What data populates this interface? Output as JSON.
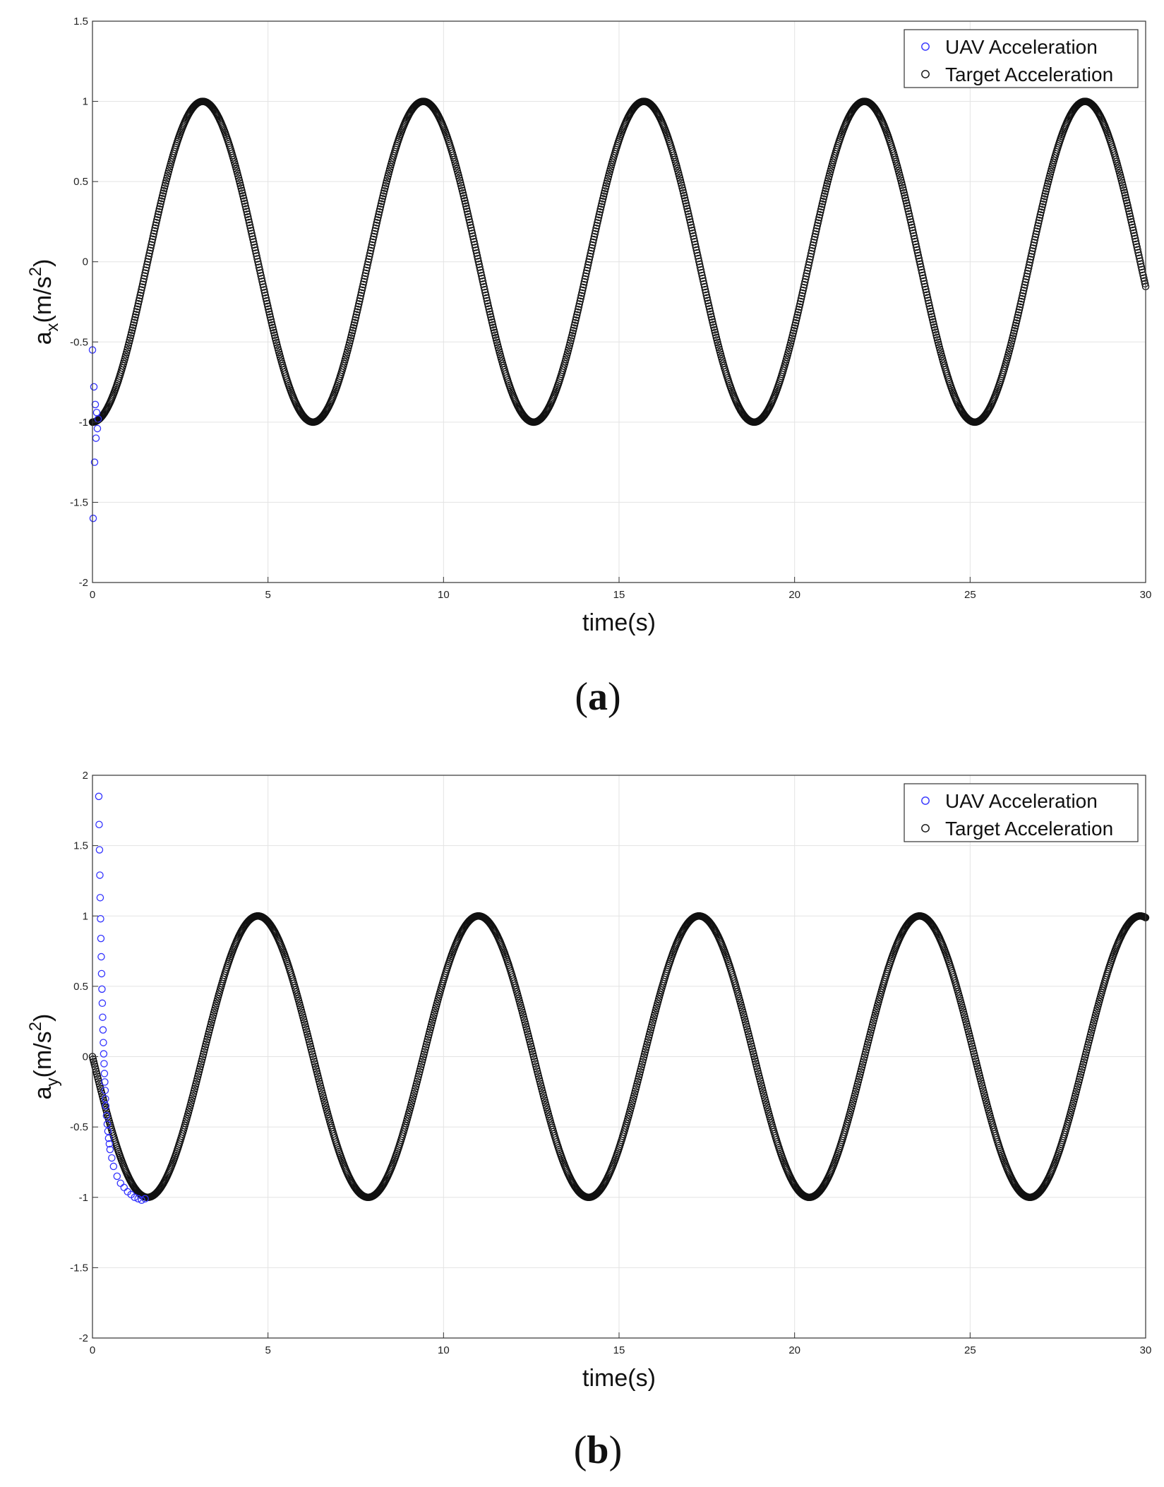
{
  "chart_data": [
    {
      "type": "scatter",
      "caption_open": "(",
      "caption_letter": "a",
      "caption_close": ")",
      "xlabel": "time(s)",
      "ylabel_base": "a",
      "ylabel_sub": "x",
      "ylabel_unit_open": "(m/s",
      "ylabel_unit_sup": "2",
      "ylabel_unit_close": ")",
      "xlim": [
        0,
        30
      ],
      "ylim": [
        -2,
        1.5
      ],
      "xticks": [
        0,
        5,
        10,
        15,
        20,
        25,
        30
      ],
      "yticks": [
        -2,
        -1.5,
        -1,
        -0.5,
        0,
        0.5,
        1,
        1.5
      ],
      "grid": true,
      "legend": "top-right",
      "series": [
        {
          "name": "UAV Acceleration",
          "color": "#3333ff",
          "marker": "circle-open",
          "x": [
            0.0,
            0.02,
            0.04,
            0.06,
            0.08,
            0.1,
            0.12,
            0.14,
            0.16
          ],
          "y": [
            -0.55,
            -1.6,
            -0.78,
            -1.25,
            -0.89,
            -1.1,
            -0.94,
            -1.04,
            -0.98
          ]
        },
        {
          "name": "Target Acceleration",
          "color": "#111111",
          "marker": "circle-open",
          "function": "-cos(t)",
          "x_range": [
            0,
            30
          ]
        }
      ]
    },
    {
      "type": "scatter",
      "caption_open": "(",
      "caption_letter": "b",
      "caption_close": ")",
      "xlabel": "time(s)",
      "ylabel_base": "a",
      "ylabel_sub": "y",
      "ylabel_unit_open": "(m/s",
      "ylabel_unit_sup": "2",
      "ylabel_unit_close": ")",
      "xlim": [
        0,
        30
      ],
      "ylim": [
        -2,
        2
      ],
      "xticks": [
        0,
        5,
        10,
        15,
        20,
        25,
        30
      ],
      "yticks": [
        -2,
        -1.5,
        -1,
        -0.5,
        0,
        0.5,
        1,
        1.5,
        2
      ],
      "grid": true,
      "legend": "top-right",
      "series": [
        {
          "name": "UAV Acceleration",
          "color": "#3333ff",
          "marker": "circle-open",
          "x": [
            0.18,
            0.19,
            0.2,
            0.21,
            0.22,
            0.23,
            0.24,
            0.25,
            0.26,
            0.27,
            0.28,
            0.29,
            0.3,
            0.31,
            0.32,
            0.33,
            0.34,
            0.35,
            0.36,
            0.37,
            0.38,
            0.4,
            0.42,
            0.44,
            0.46,
            0.48,
            0.5,
            0.55,
            0.6,
            0.7,
            0.8,
            0.9,
            1.0,
            1.1,
            1.2,
            1.3,
            1.4,
            1.5
          ],
          "y": [
            1.85,
            1.65,
            1.47,
            1.29,
            1.13,
            0.98,
            0.84,
            0.71,
            0.59,
            0.48,
            0.38,
            0.28,
            0.19,
            0.1,
            0.02,
            -0.05,
            -0.12,
            -0.18,
            -0.24,
            -0.3,
            -0.35,
            -0.42,
            -0.48,
            -0.53,
            -0.58,
            -0.62,
            -0.66,
            -0.72,
            -0.78,
            -0.85,
            -0.9,
            -0.93,
            -0.96,
            -0.98,
            -1.0,
            -1.01,
            -1.02,
            -1.01
          ]
        },
        {
          "name": "Target Acceleration",
          "color": "#111111",
          "marker": "circle-open",
          "function": "-sin(t)",
          "x_range": [
            0,
            30
          ]
        }
      ]
    }
  ]
}
